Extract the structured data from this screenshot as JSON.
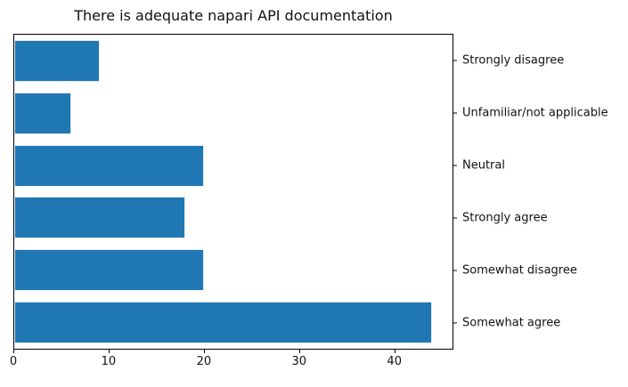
{
  "chart_data": {
    "type": "bar",
    "orientation": "horizontal",
    "title": "There is adequate napari API documentation",
    "categories": [
      "Strongly disagree",
      "Unfamiliar/not applicable",
      "Neutral",
      "Strongly agree",
      "Somewhat disagree",
      "Somewhat agree"
    ],
    "values": [
      9,
      6,
      20,
      18,
      20,
      44
    ],
    "x_ticks": [
      0,
      10,
      20,
      30,
      40
    ],
    "xlim": [
      0,
      46.2
    ],
    "xlabel": "",
    "ylabel": "",
    "category_axis_side": "right",
    "grid": false,
    "legend": "none",
    "bar_color": "#1f77b4",
    "bar_edge_color": "#e9f0f8",
    "axis_color": "#000000",
    "text_color": "#111111",
    "background_color": "#ffffff"
  }
}
